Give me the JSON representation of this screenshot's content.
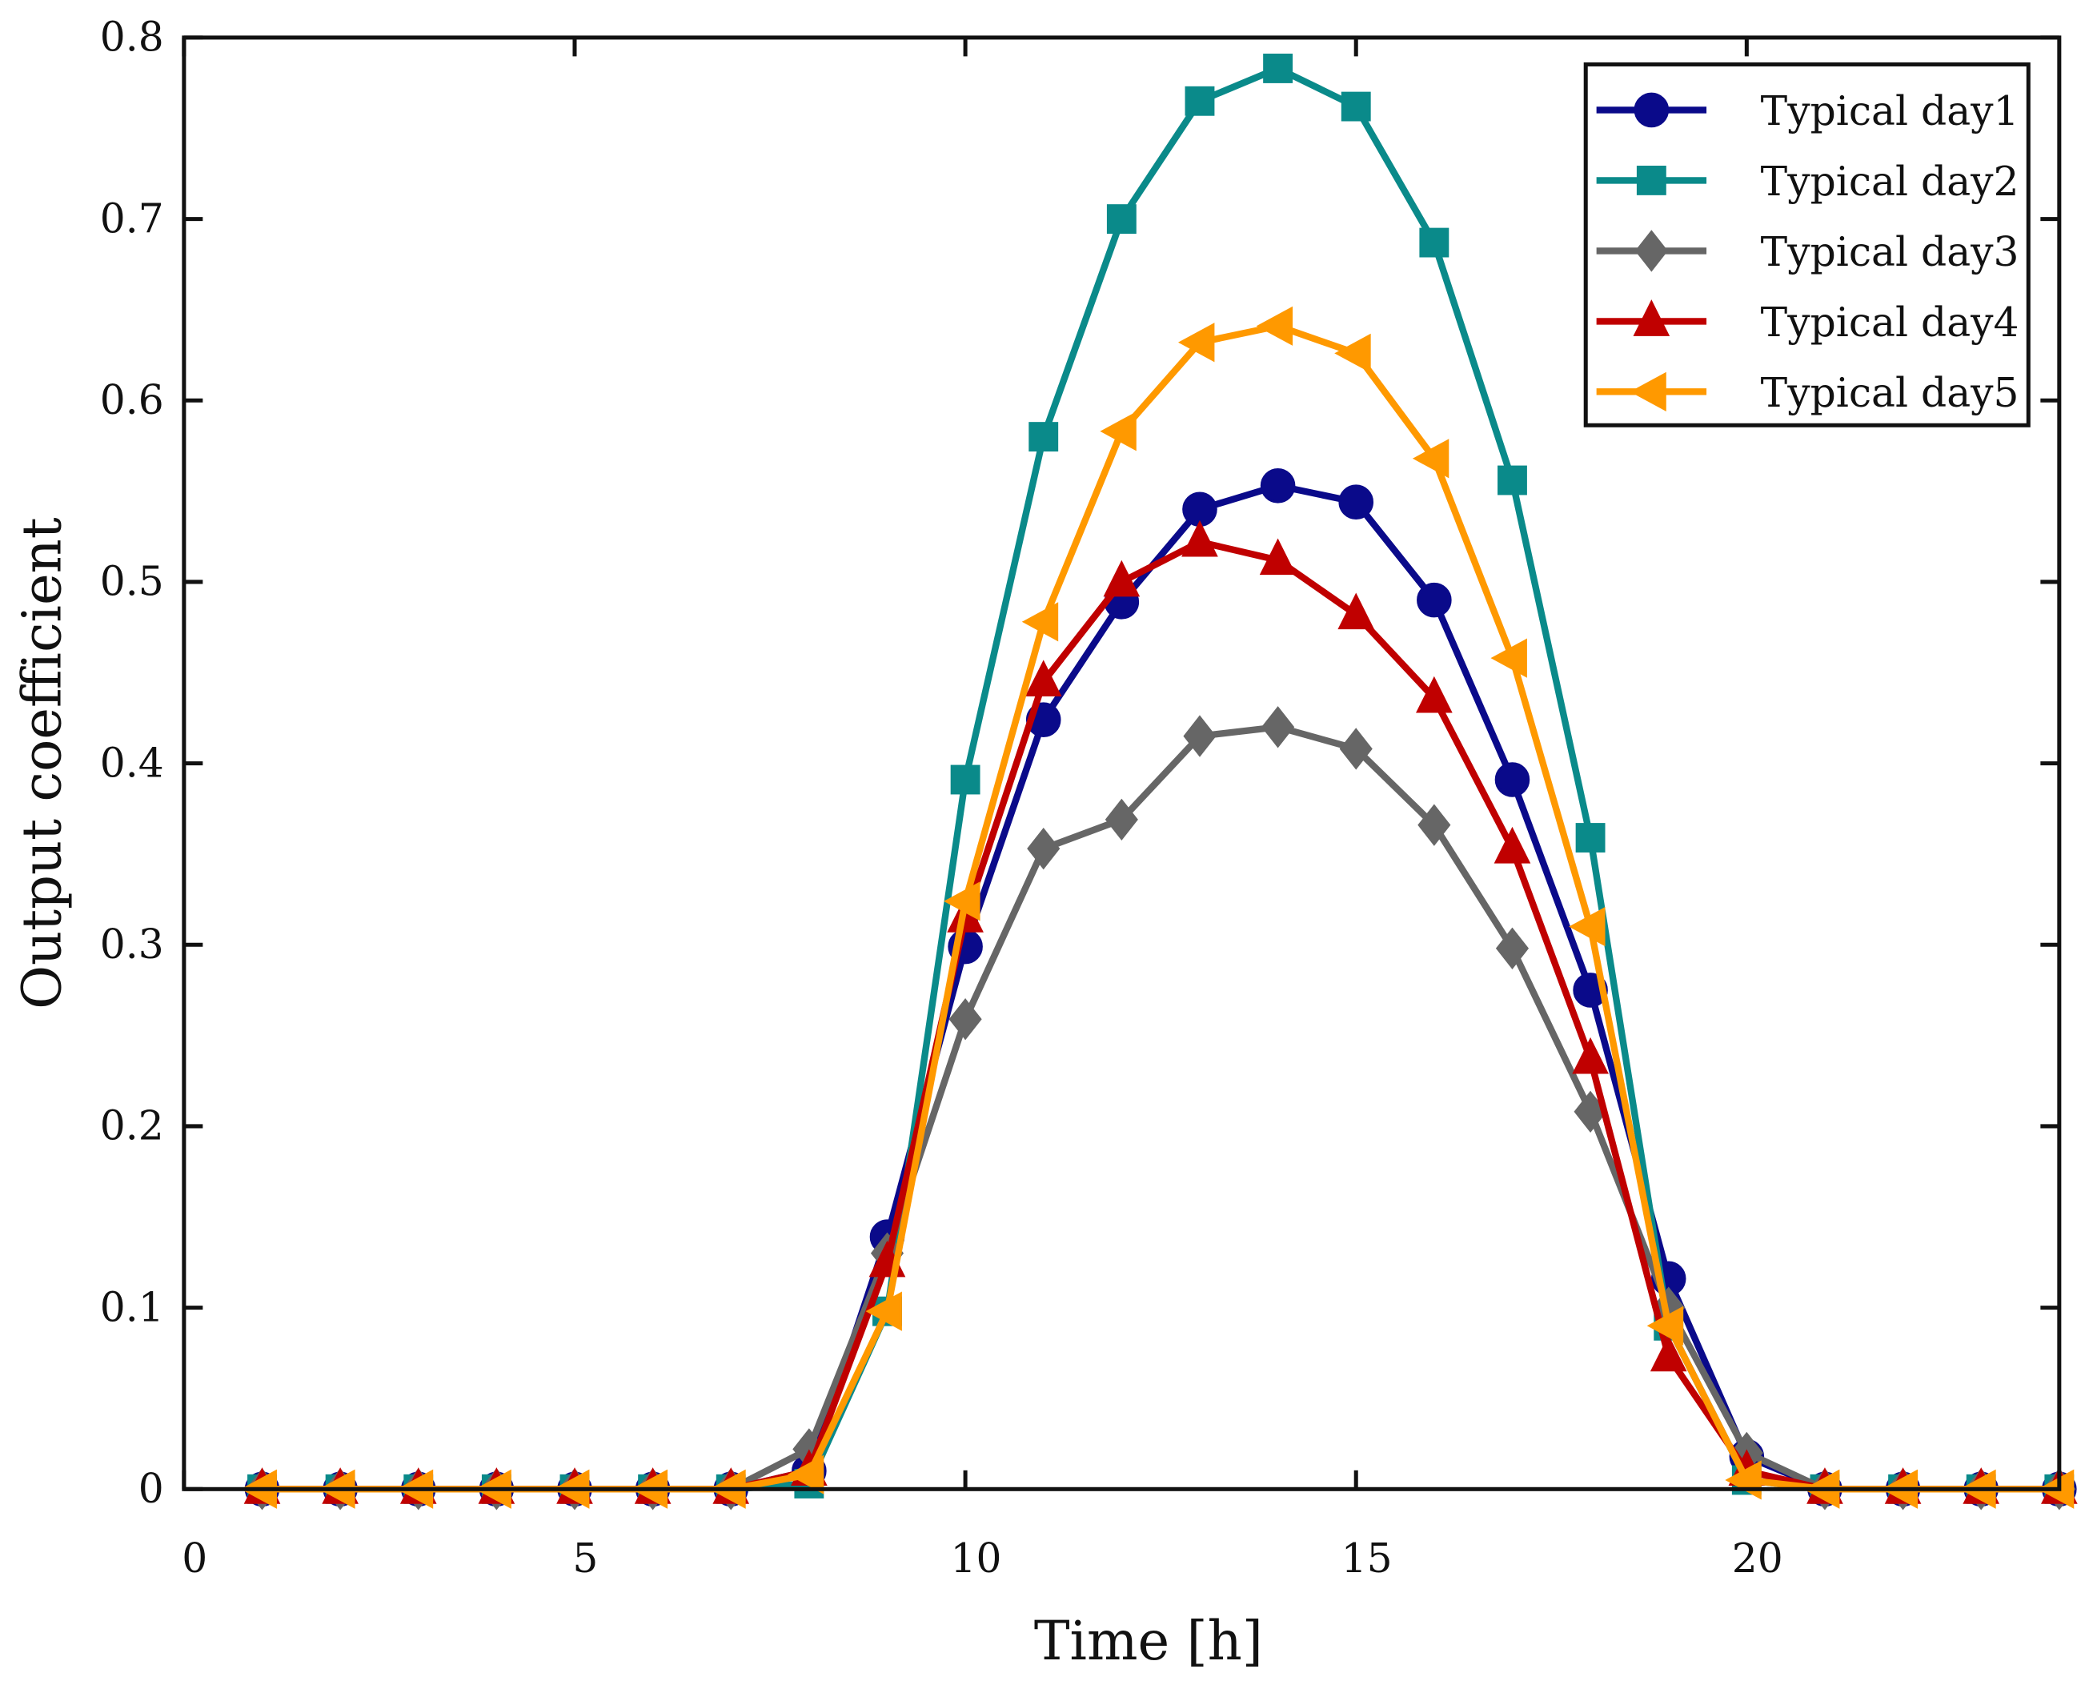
{
  "chart_data": {
    "type": "line",
    "title": "",
    "xlabel": "Time [h]",
    "ylabel": "Output coefficient",
    "xlim": [
      0,
      24
    ],
    "ylim": [
      0,
      0.8
    ],
    "xticks": [
      0,
      5,
      10,
      15,
      20
    ],
    "yticks": [
      0,
      0.1,
      0.2,
      0.3,
      0.4,
      0.5,
      0.6,
      0.7,
      0.8
    ],
    "grid": false,
    "legend_position": "top-right",
    "x": [
      1,
      2,
      3,
      4,
      5,
      6,
      7,
      8,
      9,
      10,
      11,
      12,
      13,
      14,
      15,
      16,
      17,
      18,
      19,
      20,
      21,
      22,
      23,
      24
    ],
    "series": [
      {
        "name": "Typical day1",
        "color": "#0a0a8a",
        "marker": "circle",
        "values": [
          0,
          0,
          0,
          0,
          0,
          0,
          0,
          0.01,
          0.139,
          0.299,
          0.424,
          0.489,
          0.54,
          0.553,
          0.544,
          0.49,
          0.391,
          0.275,
          0.116,
          0.018,
          0,
          0,
          0,
          0
        ]
      },
      {
        "name": "Typical day2",
        "color": "#0a8a8a",
        "marker": "square",
        "values": [
          0,
          0,
          0,
          0,
          0,
          0,
          0,
          0.003,
          0.098,
          0.391,
          0.58,
          0.7,
          0.765,
          0.783,
          0.762,
          0.687,
          0.556,
          0.359,
          0.09,
          0.005,
          0,
          0,
          0,
          0
        ]
      },
      {
        "name": "Typical day3",
        "color": "#666666",
        "marker": "diamond",
        "values": [
          0,
          0,
          0,
          0,
          0,
          0,
          0,
          0.022,
          0.13,
          0.259,
          0.353,
          0.369,
          0.415,
          0.42,
          0.408,
          0.366,
          0.298,
          0.208,
          0.1,
          0.02,
          0,
          0,
          0,
          0
        ]
      },
      {
        "name": "Typical day4",
        "color": "#c00000",
        "marker": "triangle-up",
        "values": [
          0,
          0,
          0,
          0,
          0,
          0,
          0,
          0.01,
          0.125,
          0.315,
          0.445,
          0.5,
          0.522,
          0.512,
          0.482,
          0.436,
          0.353,
          0.237,
          0.073,
          0.01,
          0,
          0,
          0,
          0
        ]
      },
      {
        "name": "Typical day5",
        "color": "#ff9900",
        "marker": "triangle-left",
        "values": [
          0,
          0,
          0,
          0,
          0,
          0,
          0,
          0.008,
          0.098,
          0.324,
          0.478,
          0.583,
          0.632,
          0.641,
          0.626,
          0.568,
          0.458,
          0.31,
          0.09,
          0.005,
          0,
          0,
          0,
          0
        ]
      }
    ]
  }
}
